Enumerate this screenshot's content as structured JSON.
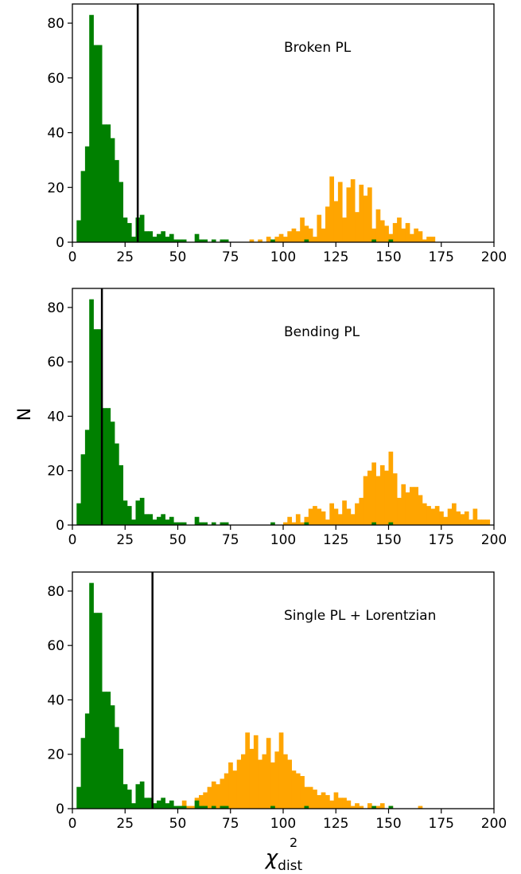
{
  "chart_data": {
    "type": "histogram",
    "shared_y_label": "N",
    "shared_x_label_base": "χ",
    "shared_x_label_sup": "2",
    "shared_x_label_sub": "dist",
    "colors": {
      "green": "#008000",
      "orange": "#FFA500",
      "line": "#000000"
    },
    "bin_width": 2,
    "panels": [
      {
        "label": "Broken PL",
        "xlim": [
          0,
          200
        ],
        "ylim": [
          0,
          87
        ],
        "xticks": [
          "0",
          "25",
          "50",
          "75",
          "100",
          "125",
          "150",
          "175",
          "200"
        ],
        "yticks": [
          "0",
          "20",
          "40",
          "60",
          "80"
        ],
        "vline_x": 31,
        "green_bins": [
          {
            "x": 2,
            "h": 8
          },
          {
            "x": 4,
            "h": 26
          },
          {
            "x": 6,
            "h": 35
          },
          {
            "x": 8,
            "h": 83
          },
          {
            "x": 10,
            "h": 72
          },
          {
            "x": 12,
            "h": 72
          },
          {
            "x": 14,
            "h": 43
          },
          {
            "x": 16,
            "h": 43
          },
          {
            "x": 18,
            "h": 38
          },
          {
            "x": 20,
            "h": 30
          },
          {
            "x": 22,
            "h": 22
          },
          {
            "x": 24,
            "h": 9
          },
          {
            "x": 26,
            "h": 7
          },
          {
            "x": 28,
            "h": 2
          },
          {
            "x": 30,
            "h": 9
          },
          {
            "x": 32,
            "h": 10
          },
          {
            "x": 34,
            "h": 4
          },
          {
            "x": 36,
            "h": 4
          },
          {
            "x": 38,
            "h": 2
          },
          {
            "x": 40,
            "h": 3
          },
          {
            "x": 42,
            "h": 4
          },
          {
            "x": 44,
            "h": 2
          },
          {
            "x": 46,
            "h": 3
          },
          {
            "x": 48,
            "h": 1
          },
          {
            "x": 50,
            "h": 1
          },
          {
            "x": 52,
            "h": 1
          },
          {
            "x": 58,
            "h": 3
          },
          {
            "x": 60,
            "h": 1
          },
          {
            "x": 62,
            "h": 1
          },
          {
            "x": 66,
            "h": 1
          },
          {
            "x": 70,
            "h": 1
          },
          {
            "x": 72,
            "h": 1
          },
          {
            "x": 94,
            "h": 1
          },
          {
            "x": 110,
            "h": 1
          },
          {
            "x": 142,
            "h": 1
          },
          {
            "x": 150,
            "h": 1
          }
        ],
        "orange_bins": [
          {
            "x": 84,
            "h": 1
          },
          {
            "x": 88,
            "h": 1
          },
          {
            "x": 92,
            "h": 2
          },
          {
            "x": 96,
            "h": 2
          },
          {
            "x": 98,
            "h": 3
          },
          {
            "x": 100,
            "h": 2
          },
          {
            "x": 102,
            "h": 4
          },
          {
            "x": 104,
            "h": 5
          },
          {
            "x": 106,
            "h": 4
          },
          {
            "x": 108,
            "h": 9
          },
          {
            "x": 110,
            "h": 6
          },
          {
            "x": 112,
            "h": 5
          },
          {
            "x": 114,
            "h": 2
          },
          {
            "x": 116,
            "h": 10
          },
          {
            "x": 118,
            "h": 5
          },
          {
            "x": 120,
            "h": 13
          },
          {
            "x": 122,
            "h": 24
          },
          {
            "x": 124,
            "h": 15
          },
          {
            "x": 126,
            "h": 22
          },
          {
            "x": 128,
            "h": 9
          },
          {
            "x": 130,
            "h": 20
          },
          {
            "x": 132,
            "h": 23
          },
          {
            "x": 134,
            "h": 11
          },
          {
            "x": 136,
            "h": 21
          },
          {
            "x": 138,
            "h": 17
          },
          {
            "x": 140,
            "h": 20
          },
          {
            "x": 142,
            "h": 5
          },
          {
            "x": 144,
            "h": 12
          },
          {
            "x": 146,
            "h": 8
          },
          {
            "x": 148,
            "h": 6
          },
          {
            "x": 150,
            "h": 3
          },
          {
            "x": 152,
            "h": 7
          },
          {
            "x": 154,
            "h": 9
          },
          {
            "x": 156,
            "h": 5
          },
          {
            "x": 158,
            "h": 7
          },
          {
            "x": 160,
            "h": 3
          },
          {
            "x": 162,
            "h": 5
          },
          {
            "x": 164,
            "h": 4
          },
          {
            "x": 166,
            "h": 1
          },
          {
            "x": 168,
            "h": 2
          },
          {
            "x": 170,
            "h": 2
          }
        ]
      },
      {
        "label": "Bending PL",
        "xlim": [
          0,
          200
        ],
        "ylim": [
          0,
          87
        ],
        "xticks": [
          "0",
          "25",
          "50",
          "75",
          "100",
          "125",
          "150",
          "175",
          "200"
        ],
        "yticks": [
          "0",
          "20",
          "40",
          "60",
          "80"
        ],
        "vline_x": 14,
        "green_bins": [
          {
            "x": 2,
            "h": 8
          },
          {
            "x": 4,
            "h": 26
          },
          {
            "x": 6,
            "h": 35
          },
          {
            "x": 8,
            "h": 83
          },
          {
            "x": 10,
            "h": 72
          },
          {
            "x": 12,
            "h": 72
          },
          {
            "x": 14,
            "h": 43
          },
          {
            "x": 16,
            "h": 43
          },
          {
            "x": 18,
            "h": 38
          },
          {
            "x": 20,
            "h": 30
          },
          {
            "x": 22,
            "h": 22
          },
          {
            "x": 24,
            "h": 9
          },
          {
            "x": 26,
            "h": 7
          },
          {
            "x": 28,
            "h": 2
          },
          {
            "x": 30,
            "h": 9
          },
          {
            "x": 32,
            "h": 10
          },
          {
            "x": 34,
            "h": 4
          },
          {
            "x": 36,
            "h": 4
          },
          {
            "x": 38,
            "h": 2
          },
          {
            "x": 40,
            "h": 3
          },
          {
            "x": 42,
            "h": 4
          },
          {
            "x": 44,
            "h": 2
          },
          {
            "x": 46,
            "h": 3
          },
          {
            "x": 48,
            "h": 1
          },
          {
            "x": 50,
            "h": 1
          },
          {
            "x": 52,
            "h": 1
          },
          {
            "x": 58,
            "h": 3
          },
          {
            "x": 60,
            "h": 1
          },
          {
            "x": 62,
            "h": 1
          },
          {
            "x": 66,
            "h": 1
          },
          {
            "x": 70,
            "h": 1
          },
          {
            "x": 72,
            "h": 1
          },
          {
            "x": 94,
            "h": 1
          },
          {
            "x": 110,
            "h": 1
          },
          {
            "x": 142,
            "h": 1
          },
          {
            "x": 150,
            "h": 1
          }
        ],
        "orange_bins": [
          {
            "x": 100,
            "h": 1
          },
          {
            "x": 102,
            "h": 3
          },
          {
            "x": 104,
            "h": 1
          },
          {
            "x": 106,
            "h": 4
          },
          {
            "x": 108,
            "h": 1
          },
          {
            "x": 110,
            "h": 3
          },
          {
            "x": 112,
            "h": 6
          },
          {
            "x": 114,
            "h": 7
          },
          {
            "x": 116,
            "h": 6
          },
          {
            "x": 118,
            "h": 5
          },
          {
            "x": 120,
            "h": 2
          },
          {
            "x": 122,
            "h": 8
          },
          {
            "x": 124,
            "h": 6
          },
          {
            "x": 126,
            "h": 4
          },
          {
            "x": 128,
            "h": 9
          },
          {
            "x": 130,
            "h": 6
          },
          {
            "x": 132,
            "h": 4
          },
          {
            "x": 134,
            "h": 8
          },
          {
            "x": 136,
            "h": 10
          },
          {
            "x": 138,
            "h": 18
          },
          {
            "x": 140,
            "h": 20
          },
          {
            "x": 142,
            "h": 23
          },
          {
            "x": 144,
            "h": 18
          },
          {
            "x": 146,
            "h": 22
          },
          {
            "x": 148,
            "h": 20
          },
          {
            "x": 150,
            "h": 27
          },
          {
            "x": 152,
            "h": 19
          },
          {
            "x": 154,
            "h": 10
          },
          {
            "x": 156,
            "h": 15
          },
          {
            "x": 158,
            "h": 12
          },
          {
            "x": 160,
            "h": 14
          },
          {
            "x": 162,
            "h": 14
          },
          {
            "x": 164,
            "h": 11
          },
          {
            "x": 166,
            "h": 8
          },
          {
            "x": 168,
            "h": 7
          },
          {
            "x": 170,
            "h": 6
          },
          {
            "x": 172,
            "h": 7
          },
          {
            "x": 174,
            "h": 5
          },
          {
            "x": 176,
            "h": 3
          },
          {
            "x": 178,
            "h": 6
          },
          {
            "x": 180,
            "h": 8
          },
          {
            "x": 182,
            "h": 5
          },
          {
            "x": 184,
            "h": 4
          },
          {
            "x": 186,
            "h": 5
          },
          {
            "x": 188,
            "h": 2
          },
          {
            "x": 190,
            "h": 6
          },
          {
            "x": 192,
            "h": 2
          },
          {
            "x": 194,
            "h": 2
          },
          {
            "x": 196,
            "h": 2
          }
        ]
      },
      {
        "label": "Single PL + Lorentzian",
        "xlim": [
          0,
          200
        ],
        "ylim": [
          0,
          87
        ],
        "xticks": [
          "0",
          "25",
          "50",
          "75",
          "100",
          "125",
          "150",
          "175",
          "200"
        ],
        "yticks": [
          "0",
          "20",
          "40",
          "60",
          "80"
        ],
        "vline_x": 38,
        "green_bins": [
          {
            "x": 2,
            "h": 8
          },
          {
            "x": 4,
            "h": 26
          },
          {
            "x": 6,
            "h": 35
          },
          {
            "x": 8,
            "h": 83
          },
          {
            "x": 10,
            "h": 72
          },
          {
            "x": 12,
            "h": 72
          },
          {
            "x": 14,
            "h": 43
          },
          {
            "x": 16,
            "h": 43
          },
          {
            "x": 18,
            "h": 38
          },
          {
            "x": 20,
            "h": 30
          },
          {
            "x": 22,
            "h": 22
          },
          {
            "x": 24,
            "h": 9
          },
          {
            "x": 26,
            "h": 7
          },
          {
            "x": 28,
            "h": 2
          },
          {
            "x": 30,
            "h": 9
          },
          {
            "x": 32,
            "h": 10
          },
          {
            "x": 34,
            "h": 4
          },
          {
            "x": 36,
            "h": 4
          },
          {
            "x": 38,
            "h": 2
          },
          {
            "x": 40,
            "h": 3
          },
          {
            "x": 42,
            "h": 4
          },
          {
            "x": 44,
            "h": 2
          },
          {
            "x": 46,
            "h": 3
          },
          {
            "x": 48,
            "h": 1
          },
          {
            "x": 50,
            "h": 1
          },
          {
            "x": 52,
            "h": 1
          },
          {
            "x": 58,
            "h": 3
          },
          {
            "x": 60,
            "h": 1
          },
          {
            "x": 62,
            "h": 1
          },
          {
            "x": 66,
            "h": 1
          },
          {
            "x": 70,
            "h": 1
          },
          {
            "x": 72,
            "h": 1
          },
          {
            "x": 94,
            "h": 1
          },
          {
            "x": 110,
            "h": 1
          },
          {
            "x": 142,
            "h": 1
          },
          {
            "x": 150,
            "h": 1
          }
        ],
        "orange_bins": [
          {
            "x": 40,
            "h": 1
          },
          {
            "x": 46,
            "h": 1
          },
          {
            "x": 50,
            "h": 1
          },
          {
            "x": 52,
            "h": 3
          },
          {
            "x": 54,
            "h": 1
          },
          {
            "x": 56,
            "h": 1
          },
          {
            "x": 58,
            "h": 4
          },
          {
            "x": 60,
            "h": 5
          },
          {
            "x": 62,
            "h": 6
          },
          {
            "x": 64,
            "h": 8
          },
          {
            "x": 66,
            "h": 10
          },
          {
            "x": 68,
            "h": 9
          },
          {
            "x": 70,
            "h": 11
          },
          {
            "x": 72,
            "h": 13
          },
          {
            "x": 74,
            "h": 17
          },
          {
            "x": 76,
            "h": 14
          },
          {
            "x": 78,
            "h": 18
          },
          {
            "x": 80,
            "h": 20
          },
          {
            "x": 82,
            "h": 28
          },
          {
            "x": 84,
            "h": 22
          },
          {
            "x": 86,
            "h": 27
          },
          {
            "x": 88,
            "h": 18
          },
          {
            "x": 90,
            "h": 20
          },
          {
            "x": 92,
            "h": 26
          },
          {
            "x": 94,
            "h": 17
          },
          {
            "x": 96,
            "h": 21
          },
          {
            "x": 98,
            "h": 28
          },
          {
            "x": 100,
            "h": 20
          },
          {
            "x": 102,
            "h": 18
          },
          {
            "x": 104,
            "h": 14
          },
          {
            "x": 106,
            "h": 13
          },
          {
            "x": 108,
            "h": 12
          },
          {
            "x": 110,
            "h": 8
          },
          {
            "x": 112,
            "h": 8
          },
          {
            "x": 114,
            "h": 7
          },
          {
            "x": 116,
            "h": 5
          },
          {
            "x": 118,
            "h": 6
          },
          {
            "x": 120,
            "h": 5
          },
          {
            "x": 122,
            "h": 3
          },
          {
            "x": 124,
            "h": 6
          },
          {
            "x": 126,
            "h": 4
          },
          {
            "x": 128,
            "h": 4
          },
          {
            "x": 130,
            "h": 3
          },
          {
            "x": 132,
            "h": 1
          },
          {
            "x": 134,
            "h": 2
          },
          {
            "x": 136,
            "h": 1
          },
          {
            "x": 140,
            "h": 2
          },
          {
            "x": 144,
            "h": 1
          },
          {
            "x": 146,
            "h": 2
          },
          {
            "x": 150,
            "h": 1
          },
          {
            "x": 164,
            "h": 1
          }
        ]
      }
    ]
  }
}
